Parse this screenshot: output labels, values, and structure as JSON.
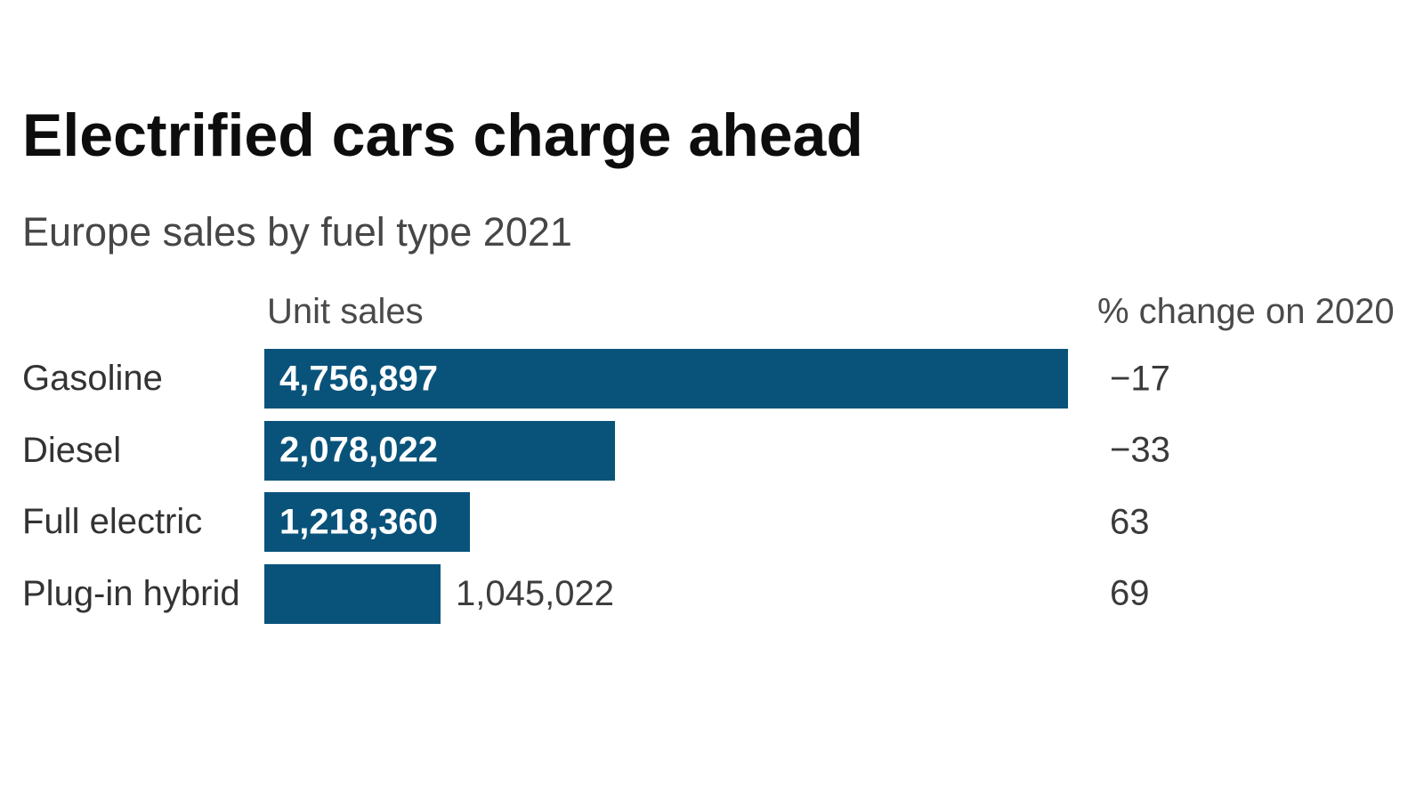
{
  "page": {
    "title": "Electrified cars charge ahead",
    "subtitle": "Europe sales by fuel type 2021"
  },
  "chart_data": {
    "type": "bar",
    "orientation": "horizontal",
    "title": "Electrified cars charge ahead",
    "subtitle": "Europe sales by fuel type 2021",
    "value_column_header": "Unit sales",
    "change_column_header": "% change on 2020",
    "categories": [
      "Gasoline",
      "Diesel",
      "Full electric",
      "Plug-in hybrid"
    ],
    "series": [
      {
        "name": "Unit sales",
        "values": [
          4756897,
          2078022,
          1218360,
          1045022
        ]
      },
      {
        "name": "% change on 2020",
        "values": [
          -17,
          -33,
          63,
          69
        ]
      }
    ],
    "xlim": [
      0,
      4756897
    ],
    "grid": false,
    "legend": "none",
    "bar_color": "#09537b",
    "rows": [
      {
        "label": "Gasoline",
        "value": 4756897,
        "value_label": "4,756,897",
        "value_label_position": "inside",
        "change_label": "−17"
      },
      {
        "label": "Diesel",
        "value": 2078022,
        "value_label": "2,078,022",
        "value_label_position": "inside",
        "change_label": "−33"
      },
      {
        "label": "Full electric",
        "value": 1218360,
        "value_label": "1,218,360",
        "value_label_position": "inside",
        "change_label": "63"
      },
      {
        "label": "Plug-in hybrid",
        "value": 1045022,
        "value_label": "1,045,022",
        "value_label_position": "outside",
        "change_label": "69"
      }
    ]
  }
}
